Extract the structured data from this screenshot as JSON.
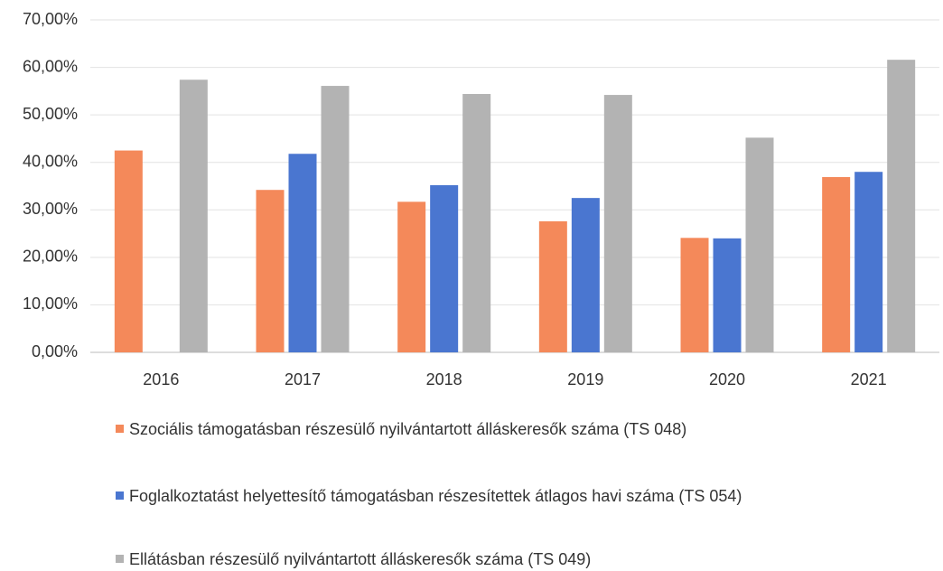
{
  "chart_data": {
    "type": "bar",
    "categories": [
      "2016",
      "2017",
      "2018",
      "2019",
      "2020",
      "2021"
    ],
    "series": [
      {
        "name": "Szociális támogatásban részesülő nyilvántartott álláskeresők száma (TS 048)",
        "color": "#f4895a",
        "values": [
          42.5,
          34.2,
          31.7,
          27.6,
          24.1,
          36.9
        ]
      },
      {
        "name": "Foglalkoztatást helyettesítő támogatásban részesítettek átlagos havi száma (TS 054)",
        "color": "#4a76d0",
        "values": [
          null,
          41.8,
          35.2,
          32.5,
          24.0,
          38.0
        ]
      },
      {
        "name": "Ellátásban részesülő nyilvántartott álláskeresők száma (TS 049)",
        "color": "#b3b3b3",
        "values": [
          57.4,
          56.1,
          54.4,
          54.2,
          45.2,
          61.6
        ]
      }
    ],
    "ylim": [
      0,
      70
    ],
    "yticks": [
      {
        "value": 0,
        "label": "0,00%"
      },
      {
        "value": 10,
        "label": "10,00%"
      },
      {
        "value": 20,
        "label": "20,00%"
      },
      {
        "value": 30,
        "label": "30,00%"
      },
      {
        "value": 40,
        "label": "40,00%"
      },
      {
        "value": 50,
        "label": "50,00%"
      },
      {
        "value": 60,
        "label": "60,00%"
      },
      {
        "value": 70,
        "label": "70,00%"
      }
    ],
    "grid": true
  }
}
